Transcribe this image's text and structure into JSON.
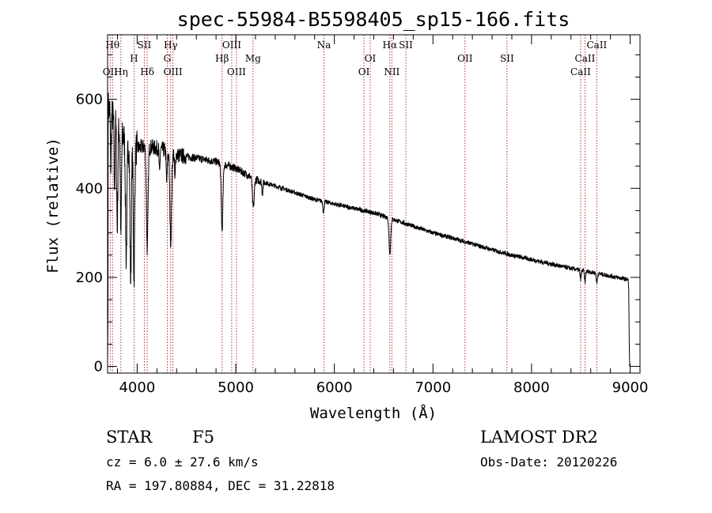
{
  "chart_data": {
    "type": "line",
    "title": "spec-55984-B5598405_sp15-166.fits",
    "xlabel": "Wavelength (Å)",
    "ylabel": "Flux (relative)",
    "xlim": [
      3700,
      9100
    ],
    "ylim": [
      -15,
      745
    ],
    "xticks": [
      4000,
      5000,
      6000,
      7000,
      8000,
      9000
    ],
    "yticks": [
      0,
      200,
      400,
      600
    ],
    "continuum": {
      "x": [
        3700,
        3800,
        3900,
        4000,
        4100,
        4200,
        4300,
        4400,
        4600,
        4800,
        5000,
        5200,
        5500,
        5800,
        6000,
        6200,
        6400,
        6600,
        6800,
        7000,
        7200,
        7400,
        7600,
        7800,
        8000,
        8200,
        8400,
        8600,
        8800,
        8980
      ],
      "y": [
        585,
        540,
        500,
        490,
        495,
        490,
        485,
        475,
        468,
        460,
        445,
        420,
        398,
        375,
        365,
        355,
        345,
        330,
        315,
        300,
        288,
        275,
        262,
        250,
        240,
        230,
        220,
        212,
        203,
        195
      ]
    },
    "absorption_features": [
      {
        "x": 3733,
        "depth": 120,
        "width": 6
      },
      {
        "x": 3770,
        "depth": 160,
        "width": 6
      },
      {
        "x": 3798,
        "depth": 230,
        "width": 8
      },
      {
        "x": 3835,
        "depth": 230,
        "width": 8
      },
      {
        "x": 3889,
        "depth": 260,
        "width": 10
      },
      {
        "x": 3934,
        "depth": 300,
        "width": 10
      },
      {
        "x": 3968,
        "depth": 290,
        "width": 10
      },
      {
        "x": 4102,
        "depth": 230,
        "width": 12
      },
      {
        "x": 4227,
        "depth": 60,
        "width": 6
      },
      {
        "x": 4300,
        "depth": 70,
        "width": 8
      },
      {
        "x": 4340,
        "depth": 200,
        "width": 12
      },
      {
        "x": 4383,
        "depth": 60,
        "width": 6
      },
      {
        "x": 4861,
        "depth": 150,
        "width": 12
      },
      {
        "x": 5172,
        "depth": 45,
        "width": 10
      },
      {
        "x": 5183,
        "depth": 45,
        "width": 10
      },
      {
        "x": 5270,
        "depth": 25,
        "width": 8
      },
      {
        "x": 5890,
        "depth": 25,
        "width": 8
      },
      {
        "x": 6563,
        "depth": 80,
        "width": 12
      },
      {
        "x": 8498,
        "depth": 20,
        "width": 8
      },
      {
        "x": 8542,
        "depth": 25,
        "width": 8
      },
      {
        "x": 8662,
        "depth": 22,
        "width": 8
      }
    ],
    "spectral_lines": [
      {
        "name": "OII",
        "x": 3727,
        "row": 3
      },
      {
        "name": "Hθ",
        "x": 3750,
        "row": 0
      },
      {
        "name": "Hη",
        "x": 3835,
        "row": 3
      },
      {
        "name": "H",
        "x": 3968,
        "row": 1
      },
      {
        "name": "SII",
        "x": 4072,
        "row": 0
      },
      {
        "name": "Hδ",
        "x": 4102,
        "row": 2
      },
      {
        "name": "Hγ",
        "x": 4340,
        "row": 0
      },
      {
        "name": "G",
        "x": 4305,
        "row": 1
      },
      {
        "name": "OIII",
        "x": 4363,
        "row": 2
      },
      {
        "name": "Hβ",
        "x": 4861,
        "row": 1
      },
      {
        "name": "OIII",
        "x": 4959,
        "row": 0
      },
      {
        "name": "OIII",
        "x": 5007,
        "row": 2
      },
      {
        "name": "Mg",
        "x": 5175,
        "row": 1
      },
      {
        "name": "Na",
        "x": 5894,
        "row": 0
      },
      {
        "name": "OI",
        "x": 6300,
        "row": 2
      },
      {
        "name": "OI",
        "x": 6364,
        "row": 1
      },
      {
        "name": "Hα",
        "x": 6563,
        "row": 0
      },
      {
        "name": "NII",
        "x": 6583,
        "row": 2
      },
      {
        "name": "SII",
        "x": 6725,
        "row": 0
      },
      {
        "name": "OII",
        "x": 7325,
        "row": 1
      },
      {
        "name": "SII",
        "x": 7751,
        "row": 1
      },
      {
        "name": "CaII",
        "x": 8498,
        "row": 2
      },
      {
        "name": "CaII",
        "x": 8542,
        "row": 1
      },
      {
        "name": "CaII",
        "x": 8662,
        "row": 0
      }
    ],
    "colors": {
      "spectrum": "#000000",
      "lines": "#b00000",
      "axes": "#000000"
    }
  },
  "info": {
    "object_class": "STAR",
    "subclass": "F5",
    "survey": "LAMOST DR2",
    "redshift": "cz = 6.0 ± 27.6 km/s",
    "obs_date": "Obs-Date: 20120226",
    "coords": "RA = 197.80884, DEC =  31.22818"
  }
}
